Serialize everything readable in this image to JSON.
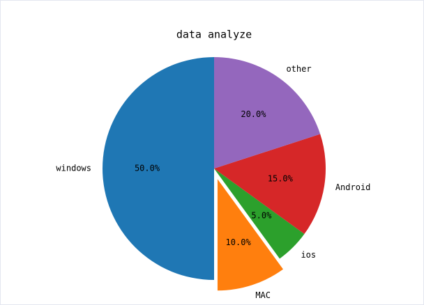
{
  "chart_data": {
    "type": "pie",
    "title": "data analyze",
    "categories": [
      "windows",
      "MAC",
      "ios",
      "Android",
      "other"
    ],
    "values": [
      50,
      10,
      5,
      15,
      20
    ],
    "value_labels": [
      "50.0%",
      "10.0%",
      "5.0%",
      "15.0%",
      "20.0%"
    ],
    "colors": [
      "#1f77b4",
      "#ff7f0e",
      "#2ca02c",
      "#d62728",
      "#9467bd"
    ],
    "explode": [
      0,
      0.1,
      0,
      0,
      0
    ],
    "startangle": 90
  }
}
